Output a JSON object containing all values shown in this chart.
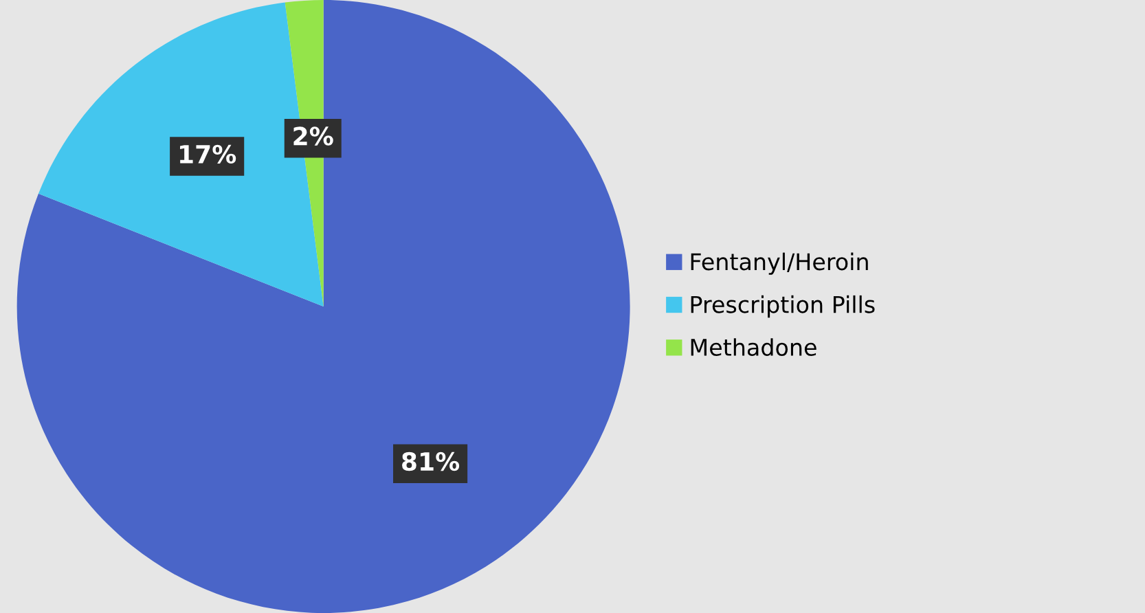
{
  "chart_data": {
    "type": "pie",
    "categories": [
      "Fentanyl/Heroin",
      "Prescription Pills",
      "Methadone"
    ],
    "values": [
      81,
      17,
      2
    ],
    "colors": [
      "#4a65c8",
      "#44c6ee",
      "#94e44a"
    ],
    "value_labels": [
      "81%",
      "17%",
      "2%"
    ],
    "legend": "right"
  }
}
